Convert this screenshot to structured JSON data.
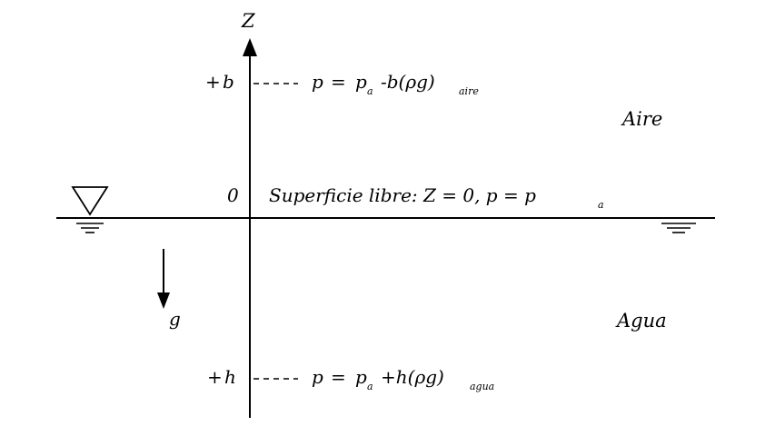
{
  "axis": {
    "label": "Z"
  },
  "levels": {
    "top": {
      "label_sign": "+",
      "label_var": "b",
      "eq_p": "p",
      "eq_equals": "=",
      "eq_pa": "p",
      "eq_pa_sub": "a",
      "eq_term": "-b(ρg)",
      "eq_sub": "aire"
    },
    "zero": {
      "label": "0"
    },
    "bottom": {
      "label_sign": "+",
      "label_var": "h",
      "eq_p": "p",
      "eq_equals": "=",
      "eq_pa": "p",
      "eq_pa_sub": "a",
      "eq_term": "+h(ρg)",
      "eq_sub": "agua"
    }
  },
  "surface": {
    "text": "Superficie libre: Z = 0, p = p",
    "text_sub": "a"
  },
  "regions": {
    "air": "Aire",
    "water": "Agua"
  },
  "gravity": {
    "label": "g"
  }
}
